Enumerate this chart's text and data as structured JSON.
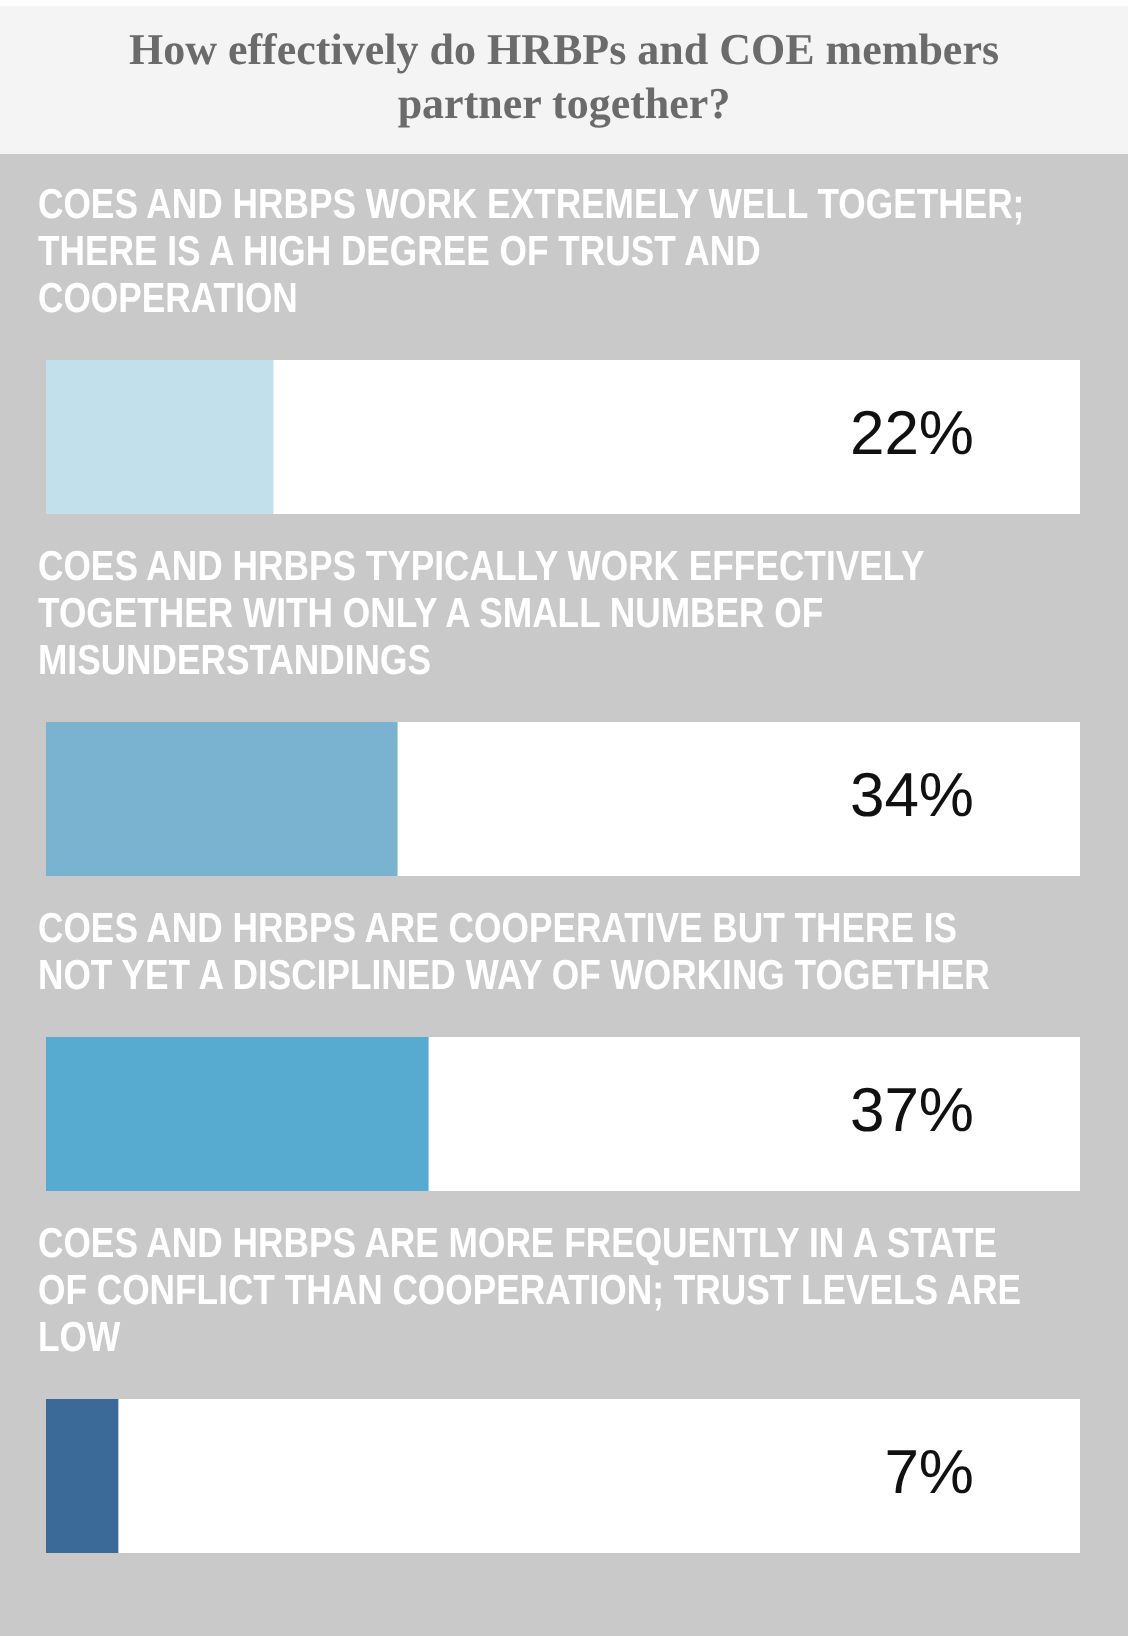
{
  "chart_data": {
    "type": "bar",
    "orientation": "horizontal",
    "title": "How effectively do HRBPs and COE members partner together?",
    "categories": [
      "COES AND HRBPS WORK EXTREMELY WELL TOGETHER; THERE IS A HIGH DEGREE OF TRUST AND COOPERATION",
      "COES AND HRBPS TYPICALLY WORK EFFECTIVELY TOGETHER WITH ONLY A SMALL NUMBER OF MISUNDERSTANDINGS",
      "COES AND HRBPS ARE COOPERATIVE BUT THERE IS NOT YET A DISCIPLINED WAY OF WORKING TOGETHER",
      "COES AND HRBPS ARE MORE FREQUENTLY IN A STATE OF CONFLICT THAN COOPERATION; TRUST LEVELS ARE LOW"
    ],
    "values": [
      22,
      34,
      37,
      7
    ],
    "colors": [
      "#c2e0eb",
      "#7ab3d0",
      "#57aad0",
      "#3b6a99"
    ],
    "value_labels": [
      "22%",
      "34%",
      "37%",
      "7%"
    ],
    "xlim": [
      0,
      100
    ],
    "tick_labels": "y"
  }
}
